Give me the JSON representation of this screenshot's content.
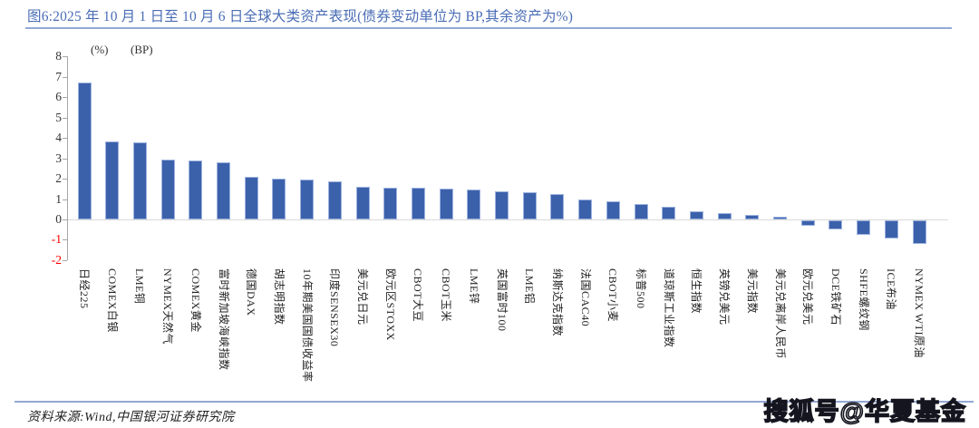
{
  "header": {
    "title": "图6:2025 年 10 月 1 日至 10 月 6 日全球大类资产表现(债券变动单位为 BP,其余资产为%)"
  },
  "chart_data": {
    "type": "bar",
    "title": "2025年10月1日至10月6日全球大类资产表现",
    "unit_note": "债券变动单位为BP,其余资产为%",
    "unit_labels": [
      "(%)",
      "(BP)"
    ],
    "categories": [
      "日经225",
      "COMEX白银",
      "LME铜",
      "NYMEX天然气",
      "COMEX黄金",
      "富时新加坡海峡指数",
      "德国DAX",
      "胡志明指数",
      "10年期美国国债收益率",
      "印度SENSEX30",
      "美元兑日元",
      "欧元区STOXX",
      "CBOT大豆",
      "CBOT玉米",
      "LME锌",
      "英国富时100",
      "LME铝",
      "纳斯达克指数",
      "法国CAC40",
      "CBOT小麦",
      "标普500",
      "道琼斯工业指数",
      "恒生指数",
      "英镑兑美元",
      "美元指数",
      "美元兑离岸人民币",
      "欧元兑美元",
      "DCE铁矿石",
      "SHFE螺纹钢",
      "ICE布油",
      "NYMEX WTI原油"
    ],
    "values": [
      6.72,
      3.81,
      3.78,
      2.93,
      2.88,
      2.82,
      2.08,
      2.02,
      1.98,
      1.86,
      1.62,
      1.56,
      1.54,
      1.5,
      1.47,
      1.4,
      1.32,
      1.25,
      1.0,
      0.88,
      0.75,
      0.64,
      0.38,
      0.29,
      0.22,
      0.15,
      -0.27,
      -0.45,
      -0.7,
      -0.9,
      -1.15
    ],
    "ylim": [
      -2,
      8
    ],
    "yticks": [
      8,
      7,
      6,
      5,
      4,
      3,
      2,
      1,
      0,
      -1,
      -2
    ],
    "grid": "off",
    "legend": "none",
    "bar_color": "#3c61ab",
    "bar_border_color": "#9db3df",
    "axis_color": "#a6a6a6",
    "tick_label_color": "#333333",
    "negative_tick_color": "#ff0000"
  },
  "footer": {
    "source": "资料来源:Wind,中国银河证券研究院",
    "watermark": "搜狐号@华夏基金"
  }
}
